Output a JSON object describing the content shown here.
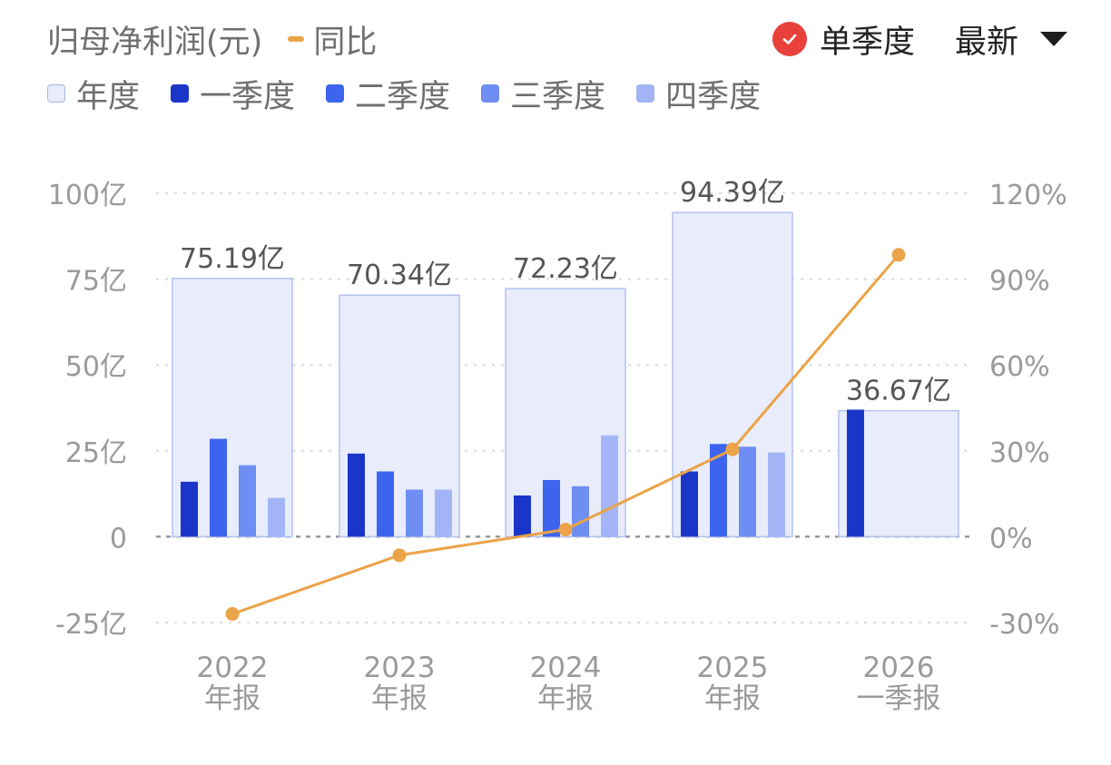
{
  "header": {
    "metric_label": "归母净利润(元)",
    "yoy_label": "同比",
    "view_mode": "单季度",
    "sort_label": "最新",
    "check_icon": "check-circle-icon",
    "caret_icon": "caret-down-icon"
  },
  "legend": [
    {
      "label": "年度",
      "color": "#e8ecfb",
      "border": "#a9b6e6"
    },
    {
      "label": "一季度",
      "color": "#1a36c9"
    },
    {
      "label": "二季度",
      "color": "#3c64ee"
    },
    {
      "label": "三季度",
      "color": "#6f8ef3"
    },
    {
      "label": "四季度",
      "color": "#a3b5f7"
    }
  ],
  "colors": {
    "annual_fill": "#e8ecfb",
    "annual_stroke": "#b4c2ee",
    "q1": "#1a36c9",
    "q2": "#3c64ee",
    "q3": "#6f8ef3",
    "q4": "#a3b5f7",
    "yoy_line": "#eba347",
    "axis_text": "#9a9a9a",
    "check_badge": "#e8413c"
  },
  "chart_data": {
    "type": "bar",
    "categories": [
      "2022\n年报",
      "2023\n年报",
      "2024\n年报",
      "2025\n年报",
      "2026\n一季报"
    ],
    "y_left": {
      "ticks": [
        "100亿",
        "75亿",
        "50亿",
        "25亿",
        "0",
        "-25亿"
      ],
      "ylim": [
        -25,
        100
      ],
      "unit": "亿"
    },
    "y_right": {
      "ticks": [
        "120%",
        "90%",
        "60%",
        "30%",
        "0%",
        "-30%"
      ],
      "ylim": [
        -30,
        120
      ],
      "unit": "%"
    },
    "annual": {
      "values": [
        75.19,
        70.34,
        72.23,
        94.39,
        36.67
      ],
      "labels": [
        "75.19亿",
        "70.34亿",
        "72.23亿",
        "94.39亿",
        "36.67亿"
      ]
    },
    "quarterly": [
      [
        16.0,
        28.5,
        20.8,
        11.3
      ],
      [
        24.2,
        19.0,
        13.7,
        13.7
      ],
      [
        12.0,
        16.5,
        14.7,
        29.5
      ],
      [
        19.0,
        27.0,
        26.2,
        24.5
      ],
      [
        37.0
      ]
    ],
    "yoy_percent": [
      -27,
      -6.5,
      2.5,
      30.5,
      98.5
    ],
    "grid": true
  }
}
